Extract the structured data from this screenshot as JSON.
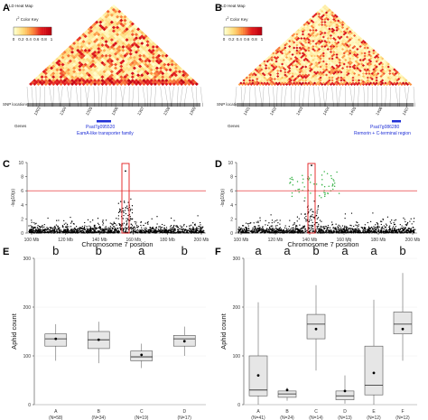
{
  "colors": {
    "ld_low": "#ffffcc",
    "ld_mid": "#fd8d3c",
    "ld_high": "#d7000f",
    "gene_bar": "#1f2fd6",
    "threshold": "#e31a1c",
    "highlight_box": "#e31a1c",
    "green_snps": "#3cb44b",
    "points": "#000000",
    "box_fill": "#e6e6e6"
  },
  "panels": {
    "A": "A",
    "B": "B",
    "C": "C",
    "D": "D",
    "E": "E",
    "F": "F"
  },
  "ld": {
    "A": {
      "title": "LD Heat Map",
      "key_label": "r",
      "key_sup": "2",
      "key_rest": " Color Key",
      "key_ticks": [
        "0",
        "0.2",
        "0.4",
        "0.6",
        "0.8",
        "1"
      ],
      "snp_label": "SNP locations",
      "genes_label": "Genes",
      "gene_id": "Psat7g095520",
      "gene_desc": "EamA-like transporter family",
      "ruler_labels": [
        "1303",
        "1304",
        "1305",
        "1306",
        "1307",
        "1308",
        "1309"
      ]
    },
    "B": {
      "title": "LD Heat Map",
      "key_label": "r",
      "key_sup": "2",
      "key_rest": " Color Key",
      "key_ticks": [
        "0",
        "0.2",
        "0.4",
        "0.6",
        "0.8",
        "1"
      ],
      "snp_label": "SNP locations",
      "genes_label": "Genes",
      "gene_id": "Psat7g086280",
      "gene_desc": "Remorin + C-terminal region",
      "ruler_labels": [
        "1401",
        "1402",
        "1403",
        "1404",
        "1405",
        "1406",
        "1407"
      ]
    }
  },
  "chart_data": [
    {
      "panel": "C",
      "type": "scatter",
      "description_free": true,
      "xlabel": "Chromosome 7 position",
      "ylabel": "-log10(p)",
      "x_ticks": [
        "100 Mb",
        "120 Mb",
        "140 Mb",
        "160 Mb",
        "180 Mb",
        "200 Mb"
      ],
      "y_ticks": [
        "0",
        "2",
        "4",
        "6",
        "8",
        "10"
      ],
      "ylim": [
        0,
        10
      ],
      "threshold": 6,
      "highlight_x": "approx 155 Mb",
      "peak": 8.8
    },
    {
      "panel": "D",
      "type": "scatter",
      "xlabel": "Chromosome 7 position",
      "ylabel": "-log10(p)",
      "x_ticks": [
        "100 Mb",
        "120 Mb",
        "140 Mb",
        "160 Mb",
        "180 Mb",
        "200 Mb"
      ],
      "y_ticks": [
        "0",
        "2",
        "4",
        "6",
        "8",
        "10"
      ],
      "ylim": [
        0,
        10
      ],
      "threshold": 6,
      "highlight_x": "approx 145 Mb",
      "peak": 9.6
    },
    {
      "panel": "E",
      "type": "box",
      "ylabel": "Aphid count",
      "ylim": [
        0,
        300
      ],
      "y_ticks": [
        "0",
        "100",
        "200",
        "300"
      ],
      "groups": [
        {
          "label": "A",
          "n": "(N=58)",
          "letter": "b",
          "q1": 120,
          "median": 135,
          "q3": 145,
          "wlo": 90,
          "whi": 165,
          "mean": 135
        },
        {
          "label": "B",
          "n": "(N=34)",
          "letter": "b",
          "q1": 115,
          "median": 133,
          "q3": 150,
          "wlo": 85,
          "whi": 170,
          "mean": 133
        },
        {
          "label": "C",
          "n": "(N=19)",
          "letter": "a",
          "q1": 90,
          "median": 98,
          "q3": 110,
          "wlo": 75,
          "whi": 125,
          "mean": 102
        },
        {
          "label": "D",
          "n": "(N=17)",
          "letter": "b",
          "q1": 120,
          "median": 135,
          "q3": 142,
          "wlo": 100,
          "whi": 160,
          "mean": 130
        }
      ]
    },
    {
      "panel": "F",
      "type": "box",
      "ylabel": "Aphid count",
      "ylim": [
        0,
        300
      ],
      "y_ticks": [
        "0",
        "100",
        "200",
        "300"
      ],
      "groups": [
        {
          "label": "A",
          "n": "(N=41)",
          "letter": "a",
          "q1": 18,
          "median": 30,
          "q3": 100,
          "wlo": 0,
          "whi": 210,
          "mean": 60
        },
        {
          "label": "B",
          "n": "(N=24)",
          "letter": "a",
          "q1": 15,
          "median": 22,
          "q3": 28,
          "wlo": 8,
          "whi": 35,
          "mean": 30
        },
        {
          "label": "C",
          "n": "(N=14)",
          "letter": "b",
          "q1": 135,
          "median": 165,
          "q3": 185,
          "wlo": 70,
          "whi": 245,
          "mean": 155
        },
        {
          "label": "D",
          "n": "(N=13)",
          "letter": "a",
          "q1": 10,
          "median": 18,
          "q3": 28,
          "wlo": 2,
          "whi": 60,
          "mean": 28
        },
        {
          "label": "E",
          "n": "(N=12)",
          "letter": "a",
          "q1": 20,
          "median": 40,
          "q3": 120,
          "wlo": 0,
          "whi": 215,
          "mean": 65
        },
        {
          "label": "F",
          "n": "(N=12)",
          "letter": "b",
          "q1": 145,
          "median": 165,
          "q3": 190,
          "wlo": 90,
          "whi": 270,
          "mean": 155
        }
      ]
    }
  ]
}
